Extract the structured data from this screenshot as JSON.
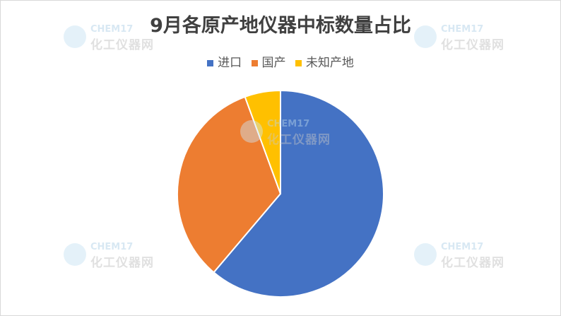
{
  "chart_data": {
    "type": "pie",
    "title": "9月各原产地仪器中标数量占比",
    "categories": [
      "进口",
      "国产",
      "未知产地"
    ],
    "values": [
      61.2,
      33.2,
      5.6
    ],
    "unit": "percent (estimated)",
    "colors": [
      "#4472C4",
      "#ED7D31",
      "#FFC000"
    ],
    "start_angle": "12 o'clock",
    "direction": "clockwise",
    "legend_position": "top"
  },
  "watermark": {
    "line1": "CHEM17",
    "line2": "化工仪器网"
  }
}
